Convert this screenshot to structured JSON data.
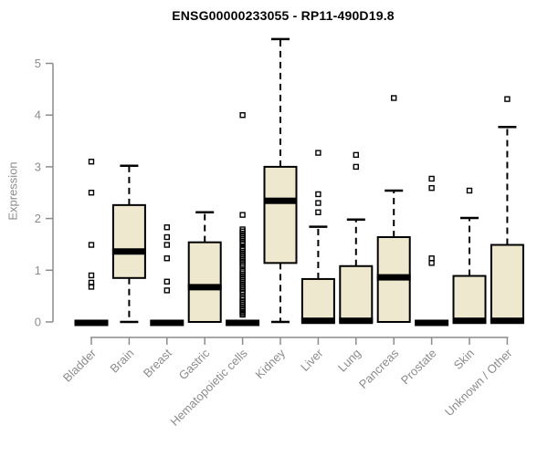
{
  "chart_data": {
    "type": "boxplot",
    "title": "ENSG00000233055 - RP11-490D19.8",
    "ylabel": "Expression",
    "xlabel": "",
    "ylim": [
      0,
      5.6
    ],
    "yticks": [
      0,
      1,
      2,
      3,
      4,
      5
    ],
    "grid": false,
    "legend": "none",
    "categories": [
      "Bladder",
      "Brain",
      "Breast",
      "Gastric",
      "Hematopoietic cells",
      "Kidney",
      "Liver",
      "Lung",
      "Pancreas",
      "Prostate",
      "Skin",
      "Unknown / Other"
    ],
    "boxes": [
      {
        "category": "Bladder",
        "low": 0,
        "q1": 0,
        "median": 0,
        "q3": 0,
        "high": 0,
        "outliers": [
          3.1,
          2.5,
          1.49,
          0.9,
          0.76,
          0.68
        ]
      },
      {
        "category": "Brain",
        "low": 0,
        "q1": 0.85,
        "median": 1.38,
        "q3": 2.26,
        "high": 3.02,
        "outliers": []
      },
      {
        "category": "Breast",
        "low": 0,
        "q1": 0,
        "median": 0,
        "q3": 0,
        "high": 0,
        "outliers": [
          1.83,
          1.64,
          1.49,
          1.23,
          0.78,
          0.61
        ]
      },
      {
        "category": "Gastric",
        "low": 0,
        "q1": 0,
        "median": 0.69,
        "q3": 1.54,
        "high": 2.12,
        "outliers": []
      },
      {
        "category": "Hematopoietic cells",
        "low": 0,
        "q1": 0,
        "median": 0,
        "q3": 0,
        "high": 0,
        "outliers": [
          4.0,
          2.07,
          1.79,
          1.75,
          1.71,
          1.67,
          1.63,
          1.59,
          1.55,
          1.51,
          1.44,
          1.4,
          1.36,
          1.32,
          1.28,
          1.24,
          1.2,
          1.16,
          1.12,
          1.08,
          1.0,
          0.96,
          0.92,
          0.88,
          0.84,
          0.8,
          0.76,
          0.72,
          0.68,
          0.64,
          0.6,
          0.56,
          0.48,
          0.44,
          0.4,
          0.36,
          0.32,
          0.28,
          0.24,
          0.2,
          0.17,
          0.14
        ]
      },
      {
        "category": "Kidney",
        "low": 0,
        "q1": 1.14,
        "median": 2.36,
        "q3": 3.0,
        "high": 5.47,
        "outliers": []
      },
      {
        "category": "Liver",
        "low": 0,
        "q1": 0,
        "median": 0.04,
        "q3": 0.83,
        "high": 1.84,
        "outliers": [
          3.27,
          2.47,
          2.3,
          2.12
        ]
      },
      {
        "category": "Lung",
        "low": 0,
        "q1": 0,
        "median": 0.04,
        "q3": 1.08,
        "high": 1.98,
        "outliers": [
          3.23,
          3.0
        ]
      },
      {
        "category": "Pancreas",
        "low": 0,
        "q1": 0,
        "median": 0.88,
        "q3": 1.64,
        "high": 2.54,
        "outliers": [
          4.33
        ]
      },
      {
        "category": "Prostate",
        "low": 0,
        "q1": 0,
        "median": 0,
        "q3": 0,
        "high": 0,
        "outliers": [
          2.77,
          2.59,
          1.23,
          1.14
        ]
      },
      {
        "category": "Skin",
        "low": 0,
        "q1": 0,
        "median": 0.04,
        "q3": 0.89,
        "high": 2.01,
        "outliers": [
          2.54
        ]
      },
      {
        "category": "Unknown / Other",
        "low": 0,
        "q1": 0,
        "median": 0.04,
        "q3": 1.49,
        "high": 3.77,
        "outliers": [
          4.31
        ]
      }
    ],
    "colors": {
      "box_fill": "#EDE8CE",
      "box_stroke": "#000000",
      "median": "#000000",
      "whisker": "#000000",
      "outlier": "#000000",
      "axis": "#8c8c8c",
      "axis_text": "#8c8c8c",
      "title_text": "#000000",
      "background": "#FFFFFF"
    }
  }
}
